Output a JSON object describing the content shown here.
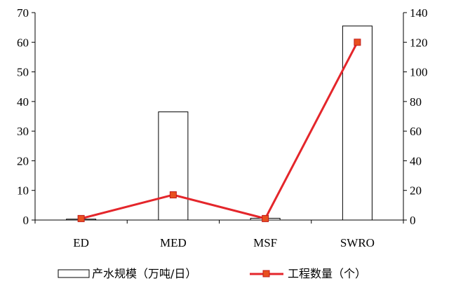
{
  "chart_data": {
    "type": "bar",
    "categories": [
      "ED",
      "MED",
      "MSF",
      "SWRO"
    ],
    "series": [
      {
        "name": "产水规模（万吨/日）",
        "type": "bar",
        "axis": "left",
        "values": [
          0.3,
          36.5,
          0.6,
          65.5
        ],
        "color": "#ffffff",
        "stroke": "#000000"
      },
      {
        "name": "工程数量（个）",
        "type": "line",
        "axis": "right",
        "values": [
          1,
          17,
          1,
          120
        ],
        "color": "#e4262b",
        "marker_color": "#e8501f"
      }
    ],
    "y_left": {
      "min": 0,
      "max": 70,
      "ticks": [
        0,
        10,
        20,
        30,
        40,
        50,
        60,
        70
      ]
    },
    "y_right": {
      "min": 0,
      "max": 140,
      "ticks": [
        0,
        20,
        40,
        60,
        80,
        100,
        120,
        140
      ]
    },
    "grid": false,
    "legend_position": "bottom"
  }
}
